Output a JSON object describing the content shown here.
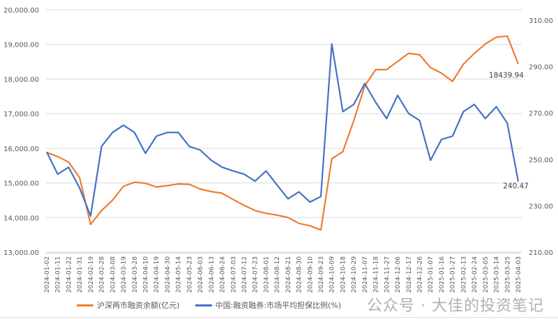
{
  "chart_data": {
    "type": "line",
    "x": [
      "2024-01-02",
      "2024-01-11",
      "2024-01-22",
      "2024-01-31",
      "2024-02-19",
      "2024-02-28",
      "2024-03-08",
      "2024-03-19",
      "2024-03-28",
      "2024-04-10",
      "2024-04-19",
      "2024-04-30",
      "2024-05-14",
      "2024-05-23",
      "2024-06-03",
      "2024-06-13",
      "2024-06-24",
      "2024-07-03",
      "2024-07-12",
      "2024-07-23",
      "2024-08-01",
      "2024-08-12",
      "2024-08-21",
      "2024-08-30",
      "2024-09-10",
      "2024-09-23",
      "2024-10-09",
      "2024-10-18",
      "2024-10-29",
      "2024-11-07",
      "2024-11-18",
      "2024-11-27",
      "2024-12-06",
      "2024-12-17",
      "2024-12-26",
      "2025-01-07",
      "2025-01-16",
      "2025-01-27",
      "2025-02-13",
      "2025-02-24",
      "2025-03-05",
      "2025-03-14",
      "2025-03-25",
      "2025-04-03"
    ],
    "series": [
      {
        "name": "沪深两市融资余额(亿元)",
        "axis": "left",
        "color": "#ED7D31",
        "values": [
          15880,
          15760,
          15600,
          15150,
          13800,
          14200,
          14500,
          14900,
          15020,
          14990,
          14880,
          14920,
          14970,
          14960,
          14820,
          14750,
          14700,
          14520,
          14350,
          14200,
          14120,
          14070,
          14000,
          13830,
          13760,
          13640,
          15700,
          15900,
          16800,
          17800,
          18270,
          18270,
          18510,
          18740,
          18700,
          18330,
          18170,
          17930,
          18430,
          18740,
          19010,
          19210,
          19240,
          18439.94
        ]
      },
      {
        "name": "中国:融资融券:市场平均担保比例(%)",
        "axis": "right",
        "color": "#4472C4",
        "values": [
          253.2,
          243.6,
          246.6,
          237.6,
          225.6,
          255.6,
          261.6,
          264.7,
          261.6,
          252.6,
          260,
          261.6,
          261.6,
          255.6,
          254,
          249.6,
          246.6,
          245,
          243.6,
          240.6,
          245,
          239,
          233,
          236,
          231.6,
          234,
          299.8,
          270.6,
          273.7,
          282.7,
          274.6,
          267.6,
          277.6,
          269.8,
          266.8,
          249.6,
          258.6,
          260,
          270.6,
          273.7,
          267.6,
          272.7,
          265.6,
          240.47
        ]
      }
    ],
    "y_left": {
      "ticks": [
        "13,000.00",
        "14,000.00",
        "15,000.00",
        "16,000.00",
        "17,000.00",
        "18,000.00",
        "19,000.00",
        "20,000.00"
      ],
      "range": [
        13000,
        20000
      ]
    },
    "y_right": {
      "ticks": [
        "210.00",
        "230.00",
        "250.00",
        "270.00",
        "290.00",
        "310.00"
      ],
      "range": [
        210,
        310
      ]
    },
    "data_labels": [
      "18439.94",
      "240.47"
    ],
    "grid": true,
    "legend": "bottom"
  },
  "watermark": "公众号 · 大佳的投资笔记"
}
